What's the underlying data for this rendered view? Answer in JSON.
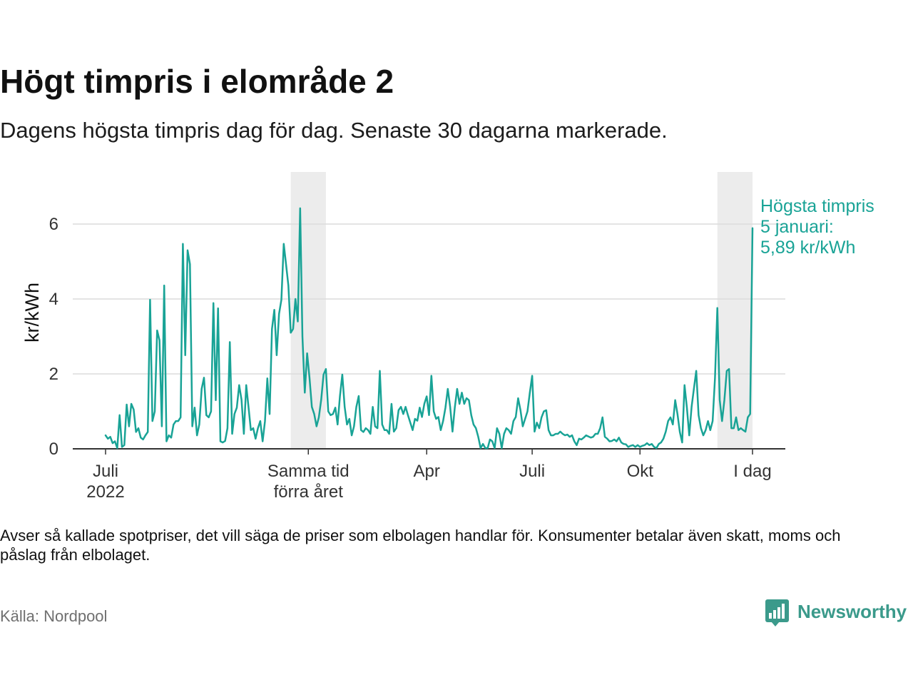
{
  "chart_data": {
    "type": "line",
    "title": "Högt timpris i elområde 2",
    "subtitle": "Dagens högsta timpris dag för dag. Senaste 30 dagarna markerade.",
    "ylabel": "kr/kWh",
    "ylim": [
      0,
      7.39
    ],
    "x_domain": [
      -28,
      580
    ],
    "y_ticks": [
      0,
      2,
      4,
      6
    ],
    "x_ticks": [
      {
        "x": 0,
        "label": [
          "Juli",
          "2022"
        ]
      },
      {
        "x": 173,
        "label": [
          "Samma tid",
          "förra året"
        ]
      },
      {
        "x": 274,
        "label": [
          "Apr"
        ]
      },
      {
        "x": 364,
        "label": [
          "Juli"
        ]
      },
      {
        "x": 456,
        "label": [
          "Okt"
        ]
      },
      {
        "x": 552,
        "label": [
          "I dag"
        ]
      }
    ],
    "highlight_ranges": [
      [
        158,
        188
      ],
      [
        522,
        552
      ]
    ],
    "series": [
      {
        "x_start": 0,
        "x_step": 2,
        "values": [
          0.36,
          0.27,
          0.32,
          0.15,
          0.2,
          0.02,
          0.9,
          0.05,
          0.1,
          1.18,
          0.6,
          1.2,
          1.05,
          0.45,
          0.55,
          0.3,
          0.25,
          0.36,
          0.45,
          3.98,
          0.74,
          1.0,
          3.16,
          2.9,
          0.6,
          4.36,
          0.2,
          0.36,
          0.3,
          0.65,
          0.74,
          0.74,
          0.84,
          5.47,
          2.5,
          5.3,
          4.93,
          0.6,
          1.1,
          0.36,
          0.65,
          1.6,
          1.9,
          0.9,
          0.84,
          1.0,
          3.89,
          1.3,
          3.75,
          0.2,
          0.17,
          0.21,
          0.55,
          2.85,
          0.4,
          0.93,
          1.1,
          1.7,
          1.31,
          0.4,
          1.7,
          1.1,
          0.5,
          0.55,
          0.27,
          0.55,
          0.74,
          0.2,
          0.74,
          1.88,
          0.93,
          3.2,
          3.71,
          2.5,
          3.6,
          3.98,
          5.47,
          4.93,
          4.36,
          3.1,
          3.2,
          4.0,
          3.4,
          6.42,
          3.0,
          1.5,
          2.55,
          1.9,
          1.12,
          0.93,
          0.6,
          0.84,
          1.31,
          1.98,
          2.13,
          1.0,
          0.9,
          0.93,
          1.1,
          0.65,
          1.41,
          1.98,
          1.12,
          0.65,
          0.8,
          0.36,
          0.6,
          1.12,
          1.41,
          0.5,
          0.45,
          0.55,
          0.5,
          0.4,
          1.12,
          0.6,
          0.55,
          2.08,
          0.65,
          0.5,
          0.5,
          0.4,
          1.2,
          0.46,
          0.55,
          1.03,
          1.12,
          0.93,
          1.12,
          0.9,
          0.7,
          0.5,
          0.8,
          0.75,
          1.1,
          0.85,
          1.2,
          1.4,
          0.9,
          1.95,
          1.0,
          0.8,
          0.85,
          0.5,
          0.74,
          1.1,
          1.6,
          1.12,
          0.46,
          1.1,
          1.6,
          1.2,
          1.5,
          1.2,
          1.35,
          1.3,
          0.9,
          0.65,
          0.55,
          0.32,
          0.02,
          0.13,
          0.02,
          0.02,
          0.25,
          0.2,
          0.02,
          0.55,
          0.4,
          0.02,
          0.4,
          0.55,
          0.5,
          0.4,
          0.74,
          0.85,
          1.35,
          1.03,
          0.6,
          0.8,
          1.0,
          1.5,
          1.95,
          0.46,
          0.7,
          0.55,
          0.84,
          1.0,
          1.03,
          0.5,
          0.36,
          0.36,
          0.4,
          0.4,
          0.46,
          0.4,
          0.36,
          0.38,
          0.32,
          0.36,
          0.2,
          0.1,
          0.27,
          0.25,
          0.3,
          0.36,
          0.33,
          0.3,
          0.32,
          0.4,
          0.4,
          0.55,
          0.84,
          0.32,
          0.27,
          0.2,
          0.21,
          0.25,
          0.2,
          0.3,
          0.17,
          0.13,
          0.12,
          0.05,
          0.08,
          0.1,
          0.05,
          0.1,
          0.05,
          0.08,
          0.1,
          0.15,
          0.1,
          0.13,
          0.05,
          0.02,
          0.13,
          0.17,
          0.27,
          0.46,
          0.74,
          0.84,
          0.65,
          1.3,
          0.93,
          0.45,
          0.17,
          1.7,
          1.1,
          0.36,
          1.12,
          1.6,
          2.08,
          0.9,
          0.55,
          0.36,
          0.5,
          0.74,
          0.5,
          0.74,
          1.89,
          3.76,
          1.31,
          0.74,
          1.31,
          2.08,
          2.13,
          0.55,
          0.55,
          0.84,
          0.5,
          0.55,
          0.5,
          0.46,
          0.84,
          0.93,
          5.89
        ]
      }
    ],
    "annotation": {
      "lines": [
        "Högsta timpris",
        "5 januari:",
        "5,89 kr/kWh"
      ]
    }
  },
  "footnote_lines": [
    "Avser så kallade spotpriser, det vill säga de priser som elbolagen handlar för. Konsumenter betalar även skatt, moms och",
    "påslag från elbolaget."
  ],
  "source": "Källa: Nordpool",
  "brand": {
    "name": "Newsworthy",
    "icon": "newsworthy-logo-icon"
  },
  "colors": {
    "line": "#19a396",
    "annotation": "#19a396",
    "band": "#ececec",
    "grid": "#dcdcdc",
    "axis": "#333333",
    "tick_text": "#333333",
    "brand": "#3b9a8b"
  }
}
